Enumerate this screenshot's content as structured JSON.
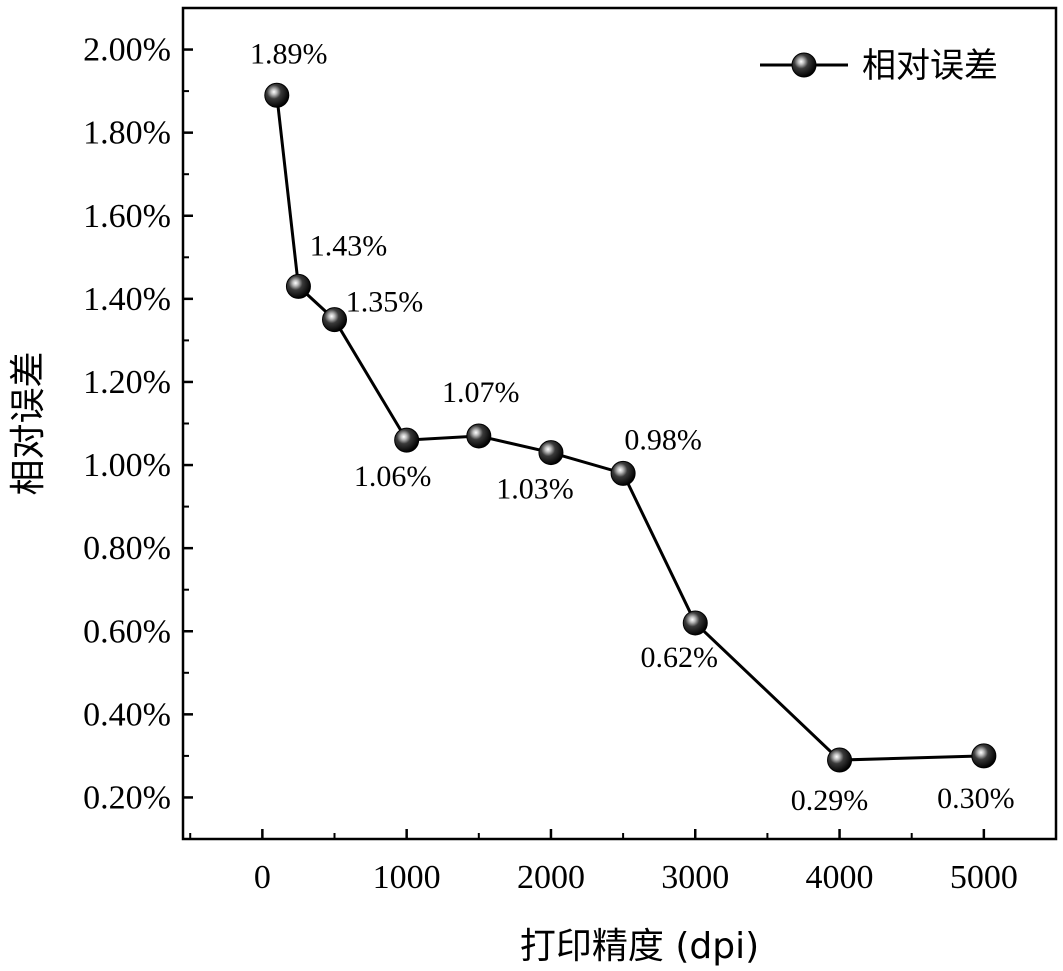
{
  "chart_data": {
    "type": "line",
    "xlabel": "打印精度 (dpi)",
    "ylabel": "相对误差",
    "xlim": [
      -550,
      5500
    ],
    "ylim": [
      0.1,
      2.1
    ],
    "x_ticks": [
      0,
      1000,
      2000,
      3000,
      4000,
      5000
    ],
    "x_tick_labels": [
      "0",
      "1000",
      "2000",
      "3000",
      "4000",
      "5000"
    ],
    "y_ticks": [
      0.2,
      0.4,
      0.6,
      0.8,
      1.0,
      1.2,
      1.4,
      1.6,
      1.8,
      2.0
    ],
    "y_tick_labels": [
      "0.20%",
      "0.40%",
      "0.60%",
      "0.80%",
      "1.00%",
      "1.20%",
      "1.40%",
      "1.60%",
      "1.80%",
      "2.00%"
    ],
    "grid": false,
    "legend_position": "top-right",
    "series": [
      {
        "name": "相对误差",
        "color": "#000000",
        "marker": "sphere",
        "x": [
          100,
          250,
          500,
          1000,
          1500,
          2000,
          2500,
          3000,
          4000,
          5000
        ],
        "y": [
          1.89,
          1.43,
          1.35,
          1.06,
          1.07,
          1.03,
          0.98,
          0.62,
          0.29,
          0.3
        ],
        "labels": [
          "1.89%",
          "1.43%",
          "1.35%",
          "1.06%",
          "1.07%",
          "1.03%",
          "0.98%",
          "0.62%",
          "0.29%",
          "0.30%"
        ]
      }
    ]
  }
}
